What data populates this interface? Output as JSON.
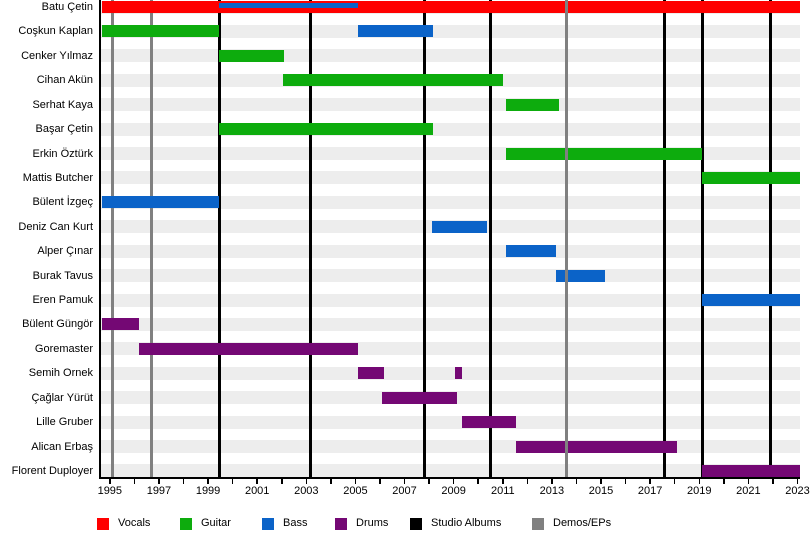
{
  "chart_data": {
    "type": "gantt-timeline",
    "x_axis": {
      "min": 1994.6,
      "max": 2023.1,
      "tick_labels": [
        "1995",
        "1997",
        "1999",
        "2001",
        "2003",
        "2005",
        "2007",
        "2009",
        "2011",
        "2013",
        "2015",
        "2017",
        "2019",
        "2021",
        "2023"
      ],
      "minor_tick_every_years": 1
    },
    "members": [
      {
        "name": "Batu Çetin",
        "stints": [
          {
            "role": "Vocals",
            "start": 1994.7,
            "end": 2023.1
          },
          {
            "role": "Bass",
            "start": 1999.45,
            "end": 2005.1,
            "overlay": true
          }
        ]
      },
      {
        "name": "Coşkun Kaplan",
        "stints": [
          {
            "role": "Guitar",
            "start": 1994.7,
            "end": 1999.45
          },
          {
            "role": "Bass",
            "start": 2005.1,
            "end": 2008.15
          }
        ]
      },
      {
        "name": "Cenker Yılmaz",
        "stints": [
          {
            "role": "Guitar",
            "start": 1999.45,
            "end": 2002.1
          }
        ]
      },
      {
        "name": "Cihan Akün",
        "stints": [
          {
            "role": "Guitar",
            "start": 2002.05,
            "end": 2011.0
          }
        ]
      },
      {
        "name": "Serhat Kaya",
        "stints": [
          {
            "role": "Guitar",
            "start": 2011.15,
            "end": 2013.3
          }
        ]
      },
      {
        "name": "Başar Çetin",
        "stints": [
          {
            "role": "Guitar",
            "start": 1999.45,
            "end": 2008.15
          }
        ]
      },
      {
        "name": "Erkin Öztürk",
        "stints": [
          {
            "role": "Guitar",
            "start": 2011.15,
            "end": 2019.1
          }
        ]
      },
      {
        "name": "Mattis Butcher",
        "stints": [
          {
            "role": "Guitar",
            "start": 2019.1,
            "end": 2023.1
          }
        ]
      },
      {
        "name": "Bülent İzgeç",
        "stints": [
          {
            "role": "Bass",
            "start": 1994.7,
            "end": 1999.45
          }
        ]
      },
      {
        "name": "Deniz Can Kurt",
        "stints": [
          {
            "role": "Bass",
            "start": 2008.1,
            "end": 2010.35
          }
        ]
      },
      {
        "name": "Alper Çınar",
        "stints": [
          {
            "role": "Bass",
            "start": 2011.15,
            "end": 2013.15
          }
        ]
      },
      {
        "name": "Burak Tavus",
        "stints": [
          {
            "role": "Bass",
            "start": 2013.15,
            "end": 2015.15
          }
        ]
      },
      {
        "name": "Eren Pamuk",
        "stints": [
          {
            "role": "Bass",
            "start": 2019.1,
            "end": 2023.1
          }
        ]
      },
      {
        "name": "Bülent Güngör",
        "stints": [
          {
            "role": "Drums",
            "start": 1994.7,
            "end": 1996.2
          }
        ]
      },
      {
        "name": "Goremaster",
        "stints": [
          {
            "role": "Drums",
            "start": 1996.2,
            "end": 2005.1
          }
        ]
      },
      {
        "name": "Semih Ornek",
        "stints": [
          {
            "role": "Drums",
            "start": 2005.1,
            "end": 2006.15
          },
          {
            "role": "Drums",
            "start": 2009.05,
            "end": 2009.35
          }
        ]
      },
      {
        "name": "Çağlar Yürüt",
        "stints": [
          {
            "role": "Drums",
            "start": 2006.1,
            "end": 2009.15
          }
        ]
      },
      {
        "name": "Lille Gruber",
        "stints": [
          {
            "role": "Drums",
            "start": 2009.35,
            "end": 2011.55
          }
        ]
      },
      {
        "name": "Alican Erbaş",
        "stints": [
          {
            "role": "Drums",
            "start": 2011.55,
            "end": 2018.1
          }
        ]
      },
      {
        "name": "Florent Duployer",
        "stints": [
          {
            "role": "Drums",
            "start": 2019.1,
            "end": 2023.1
          }
        ]
      }
    ],
    "events": [
      {
        "type": "Demos/EPs",
        "year": 1995.1,
        "layer": "back"
      },
      {
        "type": "Demos/EPs",
        "year": 1996.7,
        "layer": "back"
      },
      {
        "type": "Studio Albums",
        "year": 1999.45,
        "layer": "back"
      },
      {
        "type": "Studio Albums",
        "year": 2003.15,
        "layer": "back"
      },
      {
        "type": "Studio Albums",
        "year": 2007.8,
        "layer": "back"
      },
      {
        "type": "Studio Albums",
        "year": 2010.5,
        "layer": "back"
      },
      {
        "type": "Demos/EPs",
        "year": 2013.6,
        "layer": "front"
      },
      {
        "type": "Studio Albums",
        "year": 2017.6,
        "layer": "back"
      },
      {
        "type": "Studio Albums",
        "year": 2019.15,
        "layer": "back"
      },
      {
        "type": "Studio Albums",
        "year": 2021.9,
        "layer": "back"
      }
    ],
    "legend": [
      {
        "label": "Vocals",
        "color": "#ff0000"
      },
      {
        "label": "Guitar",
        "color": "#0dac0d"
      },
      {
        "label": "Bass",
        "color": "#0b63c8"
      },
      {
        "label": "Drums",
        "color": "#740874"
      },
      {
        "label": "Studio Albums",
        "color": "#000000"
      },
      {
        "label": "Demos/EPs",
        "color": "#808080"
      }
    ]
  }
}
